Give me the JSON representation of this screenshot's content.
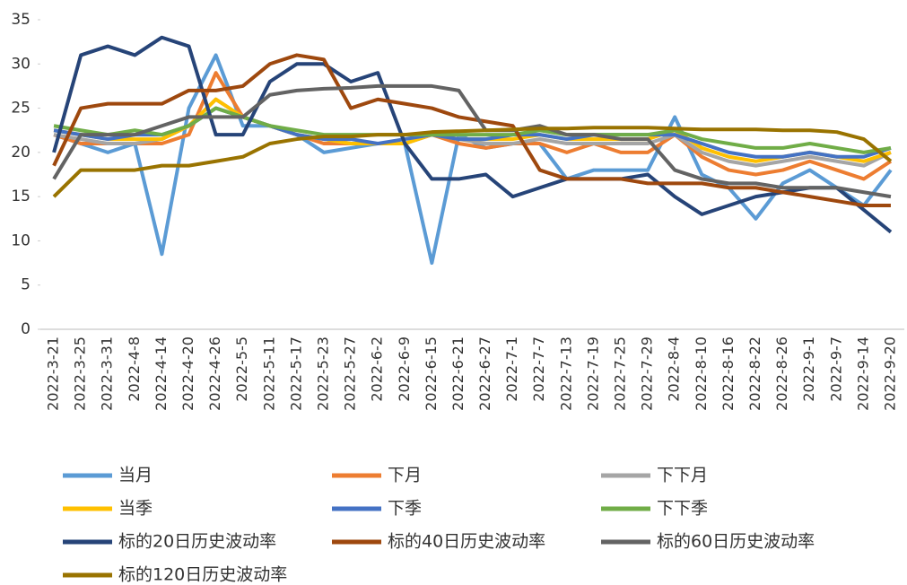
{
  "chart_data": {
    "type": "line",
    "categories": [
      "2022-3-21",
      "2022-3-25",
      "2022-3-31",
      "2022-4-8",
      "2022-4-14",
      "2022-4-20",
      "2022-4-26",
      "2022-5-5",
      "2022-5-11",
      "2022-5-17",
      "2022-5-23",
      "2022-5-27",
      "2022-6-2",
      "2022-6-9",
      "2022-6-15",
      "2022-6-21",
      "2022-6-27",
      "2022-7-1",
      "2022-7-7",
      "2022-7-13",
      "2022-7-19",
      "2022-7-25",
      "2022-7-29",
      "2022-8-4",
      "2022-8-10",
      "2022-8-16",
      "2022-8-22",
      "2022-8-26",
      "2022-9-1",
      "2022-9-7",
      "2022-9-14",
      "2022-9-20"
    ],
    "series": [
      {
        "name": "当月",
        "color": "#5b9bd5",
        "values": [
          22,
          21,
          20,
          21,
          8.5,
          25,
          31,
          23,
          23,
          22,
          20,
          20.5,
          21,
          21,
          7.5,
          22,
          20.5,
          21,
          21,
          17,
          18,
          18,
          18,
          24,
          17.5,
          16,
          12.5,
          16.5,
          18,
          16,
          14,
          18
        ]
      },
      {
        "name": "下月",
        "color": "#ed7d31",
        "values": [
          22,
          21,
          21,
          21,
          21,
          22,
          29,
          24,
          23,
          22,
          21,
          21,
          21,
          21,
          22,
          21,
          20.5,
          21,
          21,
          20,
          21,
          20,
          20,
          22,
          19.5,
          18,
          17.5,
          18,
          19,
          18,
          17,
          19
        ]
      },
      {
        "name": "下下月",
        "color": "#a5a5a5",
        "values": [
          22,
          21.5,
          21,
          21,
          21.5,
          23,
          26,
          24,
          23,
          22,
          21.5,
          21,
          21,
          21,
          22,
          21.5,
          21,
          21,
          21.5,
          21,
          21,
          21,
          21,
          22,
          20,
          19,
          18.5,
          19,
          19.5,
          19,
          18.5,
          20
        ]
      },
      {
        "name": "当季",
        "color": "#ffc000",
        "values": [
          22.5,
          22,
          21.5,
          21.5,
          21.5,
          23,
          26,
          24,
          23,
          22,
          21.5,
          21,
          21,
          21,
          22,
          21.5,
          21.5,
          21.5,
          22,
          21.5,
          21.5,
          21.5,
          21.5,
          22.5,
          20.5,
          19.5,
          19,
          19.5,
          20,
          19.5,
          19,
          20
        ]
      },
      {
        "name": "下季",
        "color": "#4472c4",
        "values": [
          22.5,
          22,
          21.5,
          22,
          22,
          23,
          25,
          24,
          23,
          22,
          21.5,
          21.5,
          21,
          21.5,
          22,
          21.5,
          21.5,
          22,
          22,
          21.5,
          22,
          22,
          22,
          22,
          21,
          20,
          19.5,
          19.5,
          20,
          19.5,
          19.5,
          20.5
        ]
      },
      {
        "name": "下下季",
        "color": "#70ad47",
        "values": [
          23,
          22.5,
          22,
          22.5,
          22,
          23,
          25,
          24,
          23,
          22.5,
          22,
          22,
          22,
          22,
          22,
          22,
          22,
          22,
          22.5,
          22,
          22,
          22,
          22,
          22.5,
          21.5,
          21,
          20.5,
          20.5,
          21,
          20.5,
          20,
          20.5
        ]
      },
      {
        "name": "标的20日历史波动率",
        "color": "#264478",
        "values": [
          20,
          31,
          32,
          31,
          33,
          32,
          22,
          22,
          28,
          30,
          30,
          28,
          29,
          21,
          17,
          17,
          17.5,
          15,
          16,
          17,
          17,
          17,
          17.5,
          15,
          13,
          14,
          15,
          15.5,
          16,
          16,
          13.5,
          11
        ]
      },
      {
        "name": "标的40日历史波动率",
        "color": "#9e480e",
        "values": [
          18.5,
          25,
          25.5,
          25.5,
          25.5,
          27,
          27,
          27.5,
          30,
          31,
          30.5,
          25,
          26,
          25.5,
          25,
          24,
          23.5,
          23,
          18,
          17,
          17,
          17,
          16.5,
          16.5,
          16.5,
          16,
          16,
          15.5,
          15,
          14.5,
          14,
          14
        ]
      },
      {
        "name": "标的60日历史波动率",
        "color": "#636363",
        "values": [
          17,
          22,
          22,
          22,
          23,
          24,
          24,
          24,
          26.5,
          27,
          27.2,
          27.3,
          27.5,
          27.5,
          27.5,
          27,
          22.5,
          22.5,
          23,
          22,
          22,
          21.5,
          21.5,
          18,
          17,
          16.5,
          16.5,
          16,
          16,
          16,
          15.5,
          15
        ]
      },
      {
        "name": "标的120日历史波动率",
        "color": "#997300",
        "values": [
          15,
          18,
          18,
          18,
          18.5,
          18.5,
          19,
          19.5,
          21,
          21.5,
          21.8,
          21.8,
          22,
          22,
          22.3,
          22.4,
          22.5,
          22.6,
          22.7,
          22.7,
          22.8,
          22.8,
          22.8,
          22.7,
          22.6,
          22.6,
          22.6,
          22.5,
          22.5,
          22.3,
          21.5,
          19
        ]
      }
    ],
    "ylim": [
      0,
      35
    ],
    "yticks": [
      0,
      5,
      10,
      15,
      20,
      25,
      30,
      35
    ],
    "grid": false
  }
}
